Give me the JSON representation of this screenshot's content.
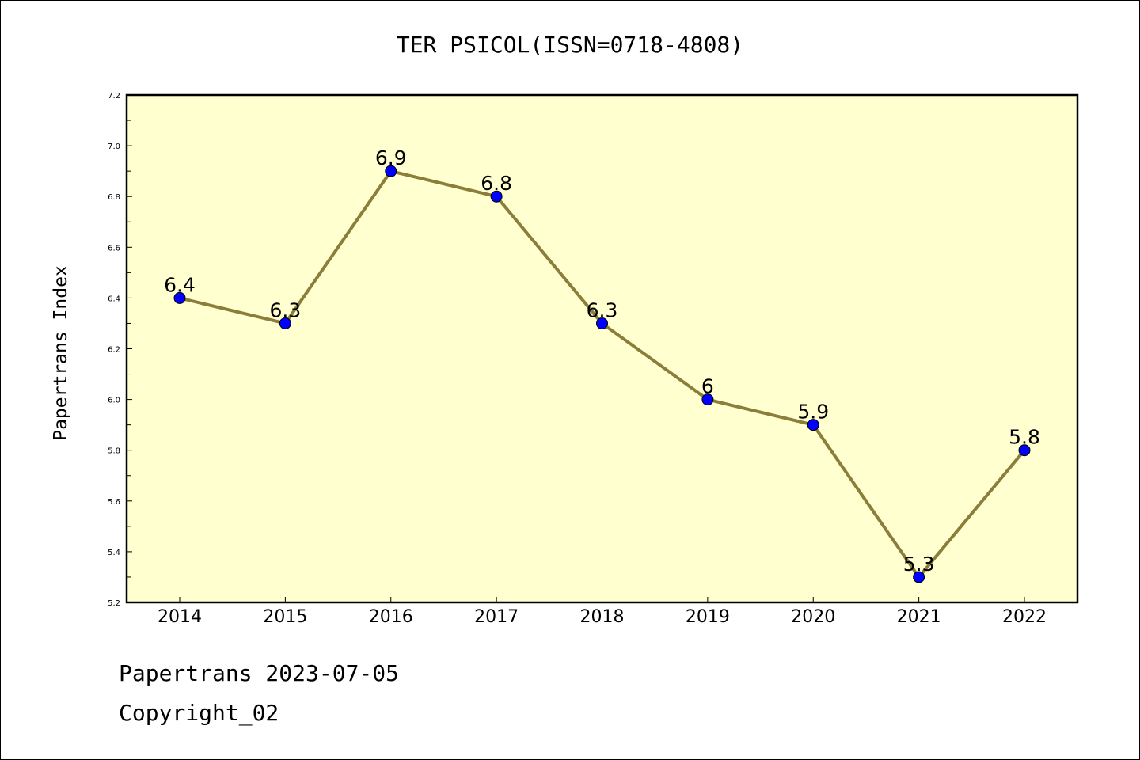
{
  "chart_data": {
    "type": "line",
    "title": "TER PSICOL(ISSN=0718-4808)",
    "xlabel": "",
    "ylabel": "Papertrans Index",
    "categories": [
      "2014",
      "2015",
      "2016",
      "2017",
      "2018",
      "2019",
      "2020",
      "2021",
      "2022"
    ],
    "values": [
      6.4,
      6.3,
      6.9,
      6.8,
      6.3,
      6.0,
      5.9,
      5.3,
      5.8
    ],
    "data_labels": [
      "6.4",
      "6.3",
      "6.9",
      "6.8",
      "6.3",
      "6",
      "5.9",
      "5.3",
      "5.8"
    ],
    "ylim": [
      5.2,
      7.2
    ],
    "yticks": [
      "5.2",
      "5.4",
      "5.6",
      "5.8",
      "6.0",
      "6.2",
      "6.4",
      "6.6",
      "6.8",
      "7.0",
      "7.2"
    ],
    "grid": false,
    "colors": {
      "plot_background": "#FFFFD0",
      "line": "#8B7D3A",
      "marker": "#0000FF"
    }
  },
  "footer": {
    "line1": "Papertrans 2023-07-05",
    "line2": "Copyright_02"
  }
}
